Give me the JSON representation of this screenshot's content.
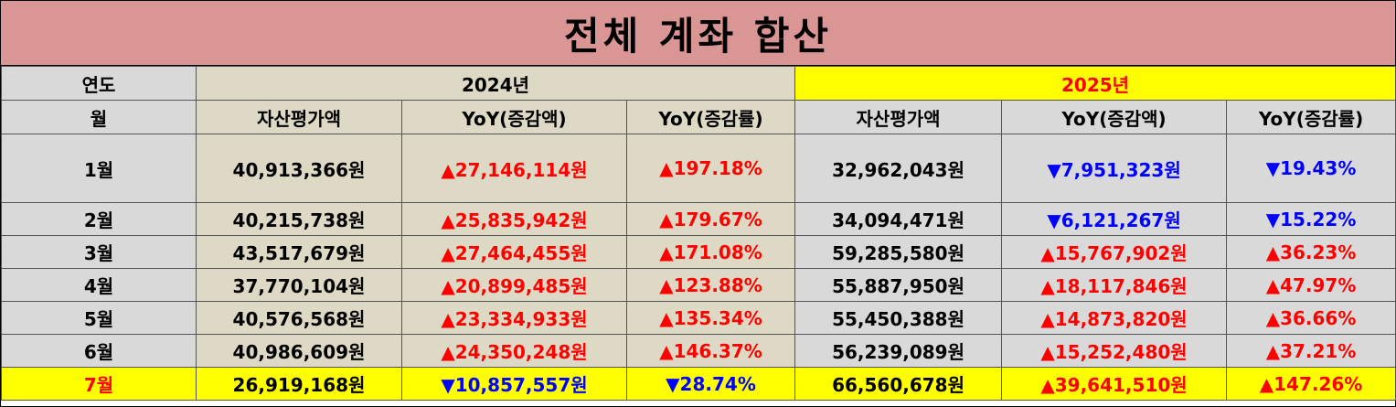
{
  "title": "전체 계좌 합산",
  "colors": {
    "title_bg": "#da9694",
    "label_bg": "#d9d9d9",
    "data_bg": "#ddd9c4",
    "highlight_bg": "#ffff00",
    "up": "#ff0000",
    "down": "#0000ff"
  },
  "header": {
    "year_label": "연도",
    "month_label": "월",
    "year_2024": "2024년",
    "year_2025": "2025년",
    "col_asset": "자산평가액",
    "col_yoy_amount": "YoY(증감액)",
    "col_yoy_rate": "YoY(증감률)"
  },
  "rows": [
    {
      "month": "1월",
      "a2024": "40,913,366원",
      "d2024": "▲27,146,114원",
      "r2024": "▲197.18%",
      "a2025": "32,962,043원",
      "d2025": "▼7,951,323원",
      "r2025": "▼19.43%"
    },
    {
      "month": "2월",
      "a2024": "40,215,738원",
      "d2024": "▲25,835,942원",
      "r2024": "▲179.67%",
      "a2025": "34,094,471원",
      "d2025": "▼6,121,267원",
      "r2025": "▼15.22%"
    },
    {
      "month": "3월",
      "a2024": "43,517,679원",
      "d2024": "▲27,464,455원",
      "r2024": "▲171.08%",
      "a2025": "59,285,580원",
      "d2025": "▲15,767,902원",
      "r2025": "▲36.23%"
    },
    {
      "month": "4월",
      "a2024": "37,770,104원",
      "d2024": "▲20,899,485원",
      "r2024": "▲123.88%",
      "a2025": "55,887,950원",
      "d2025": "▲18,117,846원",
      "r2025": "▲47.97%"
    },
    {
      "month": "5월",
      "a2024": "40,576,568원",
      "d2024": "▲23,334,933원",
      "r2024": "▲135.34%",
      "a2025": "55,450,388원",
      "d2025": "▲14,873,820원",
      "r2025": "▲36.66%"
    },
    {
      "month": "6월",
      "a2024": "40,986,609원",
      "d2024": "▲24,350,248원",
      "r2024": "▲146.37%",
      "a2025": "56,239,089원",
      "d2025": "▲15,252,480원",
      "r2025": "▲37.21%"
    },
    {
      "month": "7월",
      "a2024": "26,919,168원",
      "d2024": "▼10,857,557원",
      "r2024": "▼28.74%",
      "a2025": "66,560,678원",
      "d2025": "▲39,641,510원",
      "r2025": "▲147.26%"
    }
  ]
}
